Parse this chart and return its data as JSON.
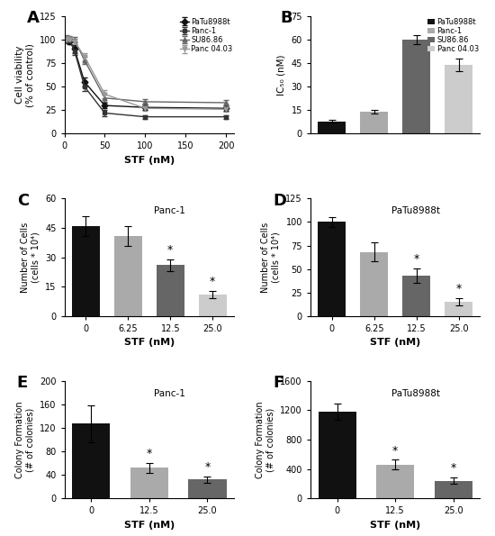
{
  "panel_A": {
    "xlabel": "STF (nM)",
    "ylabel": "Cell viability\n(% of control)",
    "xlim": [
      0,
      210
    ],
    "ylim": [
      0,
      125
    ],
    "yticks": [
      0,
      25,
      50,
      75,
      100,
      125
    ],
    "xticks": [
      0,
      50,
      100,
      150,
      200
    ],
    "lines": [
      {
        "label": "PaTu8988t",
        "x": [
          1.56,
          3.125,
          6.25,
          12.5,
          25,
          50,
          100,
          200
        ],
        "y": [
          100,
          100,
          98,
          90,
          55,
          30,
          28,
          27
        ],
        "yerr": [
          3,
          3,
          3,
          4,
          5,
          3,
          3,
          3
        ],
        "marker": "D",
        "color": "#111111"
      },
      {
        "label": "Panc-1",
        "x": [
          1.56,
          3.125,
          6.25,
          12.5,
          25,
          50,
          100,
          200
        ],
        "y": [
          100,
          100,
          100,
          88,
          50,
          22,
          18,
          18
        ],
        "yerr": [
          3,
          3,
          3,
          4,
          5,
          3,
          2,
          2
        ],
        "marker": "s",
        "color": "#333333"
      },
      {
        "label": "SU86.86",
        "x": [
          1.56,
          3.125,
          6.25,
          12.5,
          25,
          50,
          100,
          200
        ],
        "y": [
          100,
          102,
          101,
          100,
          78,
          38,
          34,
          33
        ],
        "yerr": [
          3,
          3,
          3,
          3,
          4,
          4,
          3,
          3
        ],
        "marker": "^",
        "color": "#666666"
      },
      {
        "label": "Panc 04.03",
        "x": [
          1.56,
          3.125,
          6.25,
          12.5,
          25,
          50,
          100,
          200
        ],
        "y": [
          100,
          101,
          100,
          98,
          82,
          42,
          27,
          26
        ],
        "yerr": [
          3,
          3,
          3,
          3,
          4,
          4,
          3,
          3
        ],
        "marker": "v",
        "color": "#999999"
      }
    ]
  },
  "panel_B": {
    "ylabel": "IC₅₀ (nM)",
    "ylim": [
      0,
      75
    ],
    "yticks": [
      0,
      15,
      30,
      45,
      60,
      75
    ],
    "categories": [
      "PaTu8988t",
      "Panc-1",
      "SU86.86",
      "Panc 04.03"
    ],
    "values": [
      8,
      14,
      60,
      44
    ],
    "yerr": [
      0.8,
      1.0,
      3,
      4
    ],
    "colors": [
      "#111111",
      "#aaaaaa",
      "#666666",
      "#cccccc"
    ],
    "legend_labels": [
      "PaTu8988t",
      "Panc-1",
      "SU86.86",
      "Panc 04.03"
    ],
    "legend_colors": [
      "#111111",
      "#aaaaaa",
      "#666666",
      "#cccccc"
    ]
  },
  "panel_C": {
    "inset_label": "Panc-1",
    "xlabel": "STF (nM)",
    "ylabel": "Number of Cells\n(cells * 10⁴)",
    "ylim": [
      0,
      60
    ],
    "yticks": [
      0,
      15,
      30,
      45,
      60
    ],
    "categories": [
      "0",
      "6.25",
      "12.5",
      "25.0"
    ],
    "values": [
      46,
      41,
      26,
      11
    ],
    "yerr": [
      5,
      5,
      3,
      2
    ],
    "colors": [
      "#111111",
      "#aaaaaa",
      "#666666",
      "#cccccc"
    ],
    "sig": [
      false,
      false,
      true,
      true
    ]
  },
  "panel_D": {
    "inset_label": "PaTu8988t",
    "xlabel": "STF (nM)",
    "ylabel": "Number of Cells\n(cells * 10⁴)",
    "ylim": [
      0,
      125
    ],
    "yticks": [
      0,
      25,
      50,
      75,
      100,
      125
    ],
    "categories": [
      "0",
      "6.25",
      "12.5",
      "25.0"
    ],
    "values": [
      100,
      68,
      43,
      15
    ],
    "yerr": [
      5,
      10,
      8,
      4
    ],
    "colors": [
      "#111111",
      "#aaaaaa",
      "#666666",
      "#cccccc"
    ],
    "sig": [
      false,
      false,
      true,
      true
    ]
  },
  "panel_E": {
    "inset_label": "Panc-1",
    "xlabel": "STF (nM)",
    "ylabel": "Colony Formation\n(# of colonies)",
    "ylim": [
      0,
      200
    ],
    "yticks": [
      0,
      40,
      80,
      120,
      160,
      200
    ],
    "categories": [
      "0",
      "12.5",
      "25.0"
    ],
    "values": [
      127,
      52,
      32
    ],
    "yerr": [
      32,
      8,
      6
    ],
    "colors": [
      "#111111",
      "#aaaaaa",
      "#666666"
    ],
    "sig": [
      false,
      true,
      true
    ]
  },
  "panel_F": {
    "inset_label": "PaTu8988t",
    "xlabel": "STF (nM)",
    "ylabel": "Colony Formation\n(# of colonies)",
    "ylim": [
      0,
      1600
    ],
    "yticks": [
      0,
      400,
      800,
      1200,
      1600
    ],
    "categories": [
      "0",
      "12.5",
      "25.0"
    ],
    "values": [
      1185,
      460,
      240
    ],
    "yerr": [
      110,
      65,
      45
    ],
    "colors": [
      "#111111",
      "#aaaaaa",
      "#666666"
    ],
    "sig": [
      false,
      true,
      true
    ]
  }
}
